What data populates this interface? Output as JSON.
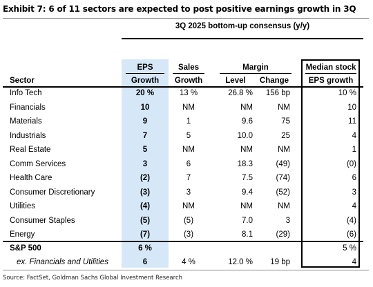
{
  "title": "Exhibit 7: 6 of 11 sectors are expected to post positive earnings growth in 3Q",
  "group_title": "3Q 2025 bottom-up consensus (y/y)",
  "headers": {
    "sector": "Sector",
    "eps_top": "EPS",
    "eps_bottom": "Growth",
    "sales_top": "Sales",
    "sales_bottom": "Growth",
    "margin_top": "Margin",
    "level": "Level",
    "change": "Change",
    "median_top": "Median stock",
    "median_bottom": "EPS growth"
  },
  "rows": [
    {
      "sector": "Info Tech",
      "eps": "20 %",
      "sales": "13 %",
      "level": "26.8 %",
      "change": "156 bp",
      "median": "10 %"
    },
    {
      "sector": "Financials",
      "eps": "10",
      "sales": "NM",
      "level": "NM",
      "change": "NM",
      "median": "10"
    },
    {
      "sector": "Materials",
      "eps": "9",
      "sales": "1",
      "level": "9.6",
      "change": "75",
      "median": "11"
    },
    {
      "sector": "Industrials",
      "eps": "7",
      "sales": "5",
      "level": "10.0",
      "change": "25",
      "median": "4"
    },
    {
      "sector": "Real Estate",
      "eps": "5",
      "sales": "NM",
      "level": "NM",
      "change": "NM",
      "median": "1"
    },
    {
      "sector": "Comm Services",
      "eps": "3",
      "sales": "6",
      "level": "18.3",
      "change": "(49)",
      "median": "(0)"
    },
    {
      "sector": "Health Care",
      "eps": "(2)",
      "sales": "7",
      "level": "7.5",
      "change": "(74)",
      "median": "6"
    },
    {
      "sector": "Consumer Discretionary",
      "eps": "(3)",
      "sales": "3",
      "level": "9.4",
      "change": "(52)",
      "median": "3"
    },
    {
      "sector": "Utilities",
      "eps": "(4)",
      "sales": "NM",
      "level": "NM",
      "change": "NM",
      "median": "4"
    },
    {
      "sector": "Consumer Staples",
      "eps": "(5)",
      "sales": "(5)",
      "level": "7.0",
      "change": "3",
      "median": "(4)"
    },
    {
      "sector": "Energy",
      "eps": "(7)",
      "sales": "(3)",
      "level": "8.1",
      "change": "(29)",
      "median": "(6)"
    }
  ],
  "totals": [
    {
      "sector": "S&P 500",
      "eps": "6 %",
      "sales": "",
      "level": "",
      "change": "",
      "median": "5 %"
    },
    {
      "sector": "ex. Financials and Utilities",
      "eps": "6",
      "sales": "4 %",
      "level": "12.0 %",
      "change": "19 bp",
      "median": "4"
    }
  ],
  "source": "Source: FactSet, Goldman Sachs Global Investment Research"
}
